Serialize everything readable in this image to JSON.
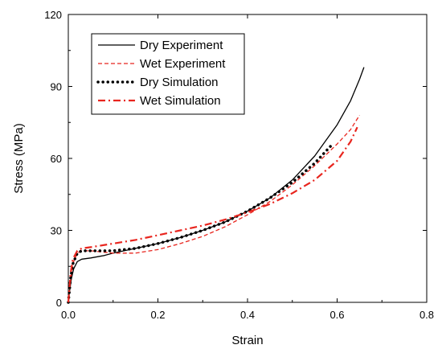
{
  "chart_data": {
    "type": "line",
    "xlabel": "Strain",
    "ylabel": "Stress (MPa)",
    "xlim": [
      0.0,
      0.8
    ],
    "ylim": [
      0,
      120
    ],
    "xticks": [
      0.0,
      0.2,
      0.4,
      0.6,
      0.8
    ],
    "xtick_labels": [
      "0.0",
      "0.2",
      "0.4",
      "0.6",
      "0.8"
    ],
    "yticks": [
      0,
      30,
      60,
      90,
      120
    ],
    "ytick_labels": [
      "0",
      "30",
      "60",
      "90",
      "120"
    ],
    "grid": false,
    "legend_placement": "top-left",
    "series": [
      {
        "name": "Dry Experiment",
        "color": "#000000",
        "style": "solid",
        "x": [
          0.0,
          0.003,
          0.007,
          0.012,
          0.02,
          0.03,
          0.05,
          0.08,
          0.1,
          0.15,
          0.2,
          0.25,
          0.3,
          0.35,
          0.4,
          0.45,
          0.5,
          0.55,
          0.6,
          0.63,
          0.65,
          0.66
        ],
        "y": [
          0,
          5,
          10,
          14,
          17,
          18,
          18.5,
          19.5,
          20.5,
          22.5,
          24.5,
          27,
          30,
          33.5,
          38,
          43.5,
          51,
          61,
          74,
          84,
          93,
          98
        ]
      },
      {
        "name": "Wet Experiment",
        "color": "#e8251e",
        "style": "dashed",
        "x": [
          0.0,
          0.003,
          0.007,
          0.012,
          0.02,
          0.03,
          0.05,
          0.1,
          0.15,
          0.2,
          0.25,
          0.3,
          0.35,
          0.4,
          0.45,
          0.5,
          0.55,
          0.6,
          0.63,
          0.65
        ],
        "y": [
          0,
          6,
          12,
          17,
          20.5,
          21.5,
          21.5,
          20.5,
          20.5,
          22,
          24.5,
          27.5,
          31.5,
          36.5,
          42,
          49,
          57,
          66,
          72,
          78
        ]
      },
      {
        "name": "Dry Simulation",
        "color": "#000000",
        "style": "dotted",
        "x": [
          0.0,
          0.005,
          0.01,
          0.02,
          0.03,
          0.05,
          0.1,
          0.15,
          0.2,
          0.25,
          0.3,
          0.35,
          0.4,
          0.45,
          0.5,
          0.55,
          0.59
        ],
        "y": [
          0,
          10,
          16,
          20.5,
          21.5,
          21.5,
          21.5,
          22.5,
          24.5,
          27,
          30,
          33.5,
          38,
          43.5,
          50,
          58,
          66
        ]
      },
      {
        "name": "Wet Simulation",
        "color": "#e8251e",
        "style": "dashdot",
        "x": [
          0.0,
          0.005,
          0.01,
          0.02,
          0.03,
          0.05,
          0.1,
          0.15,
          0.2,
          0.25,
          0.3,
          0.35,
          0.4,
          0.45,
          0.5,
          0.55,
          0.6,
          0.63,
          0.645
        ],
        "y": [
          0,
          12,
          18,
          21.5,
          22.5,
          23,
          24.5,
          26,
          28,
          30,
          32,
          34.5,
          37.5,
          41,
          45.5,
          51,
          59,
          67,
          73
        ]
      }
    ]
  }
}
